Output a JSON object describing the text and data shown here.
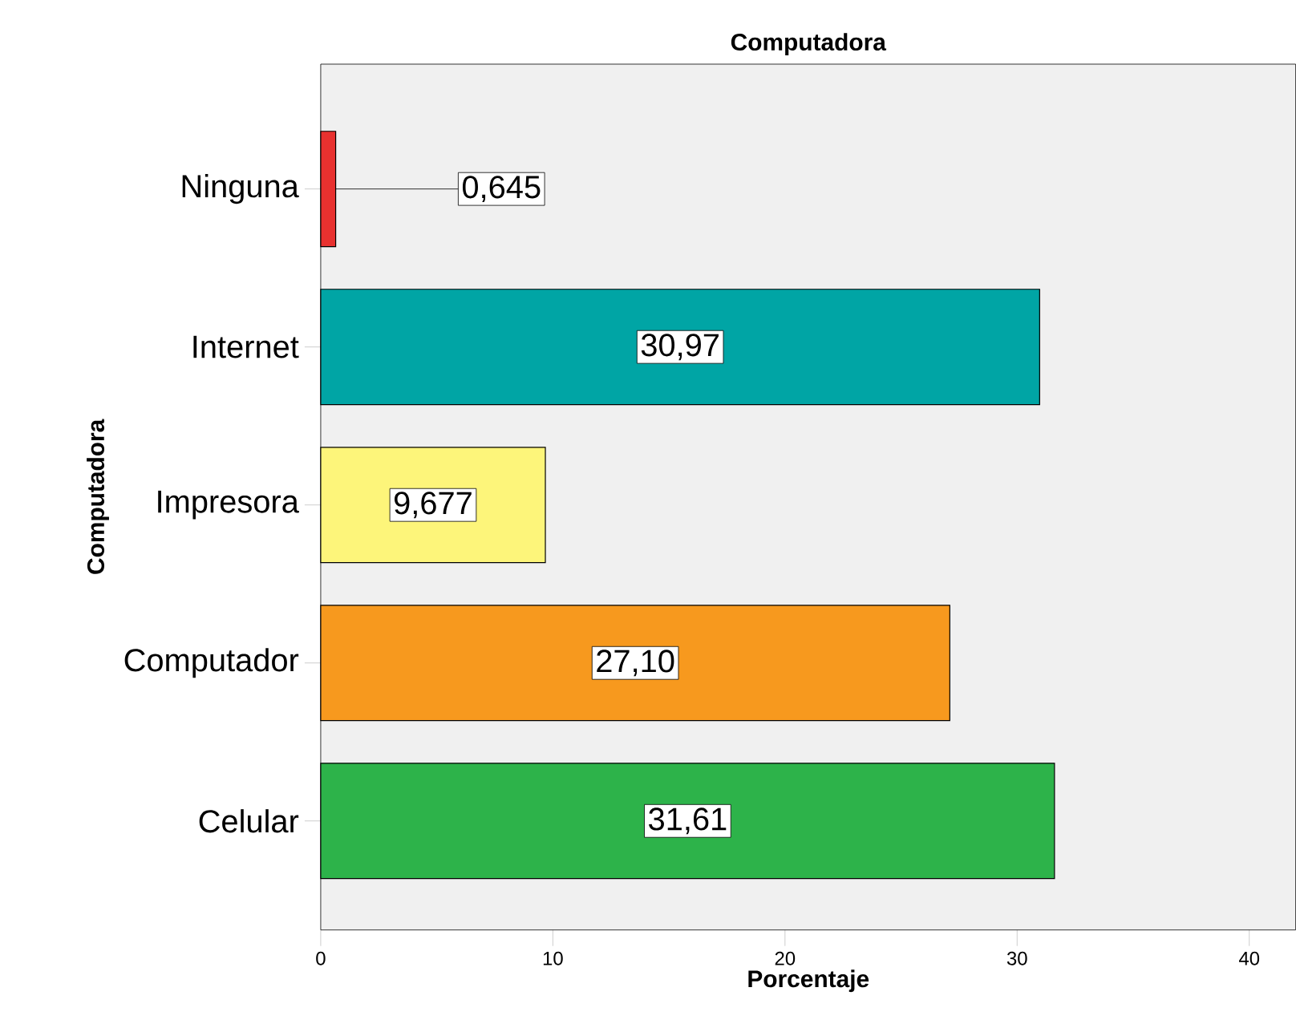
{
  "chart_data": {
    "type": "bar",
    "orientation": "horizontal",
    "title": "Computadora",
    "xlabel": "Porcentaje",
    "ylabel": "Computadora",
    "categories": [
      "Ninguna",
      "Internet",
      "Impresora",
      "Computador",
      "Celular"
    ],
    "values": [
      0.645,
      30.97,
      9.677,
      27.1,
      31.61
    ],
    "value_labels": [
      "0,645",
      "30,97",
      "9,677",
      "27,10",
      "31,61"
    ],
    "colors": [
      "#e8312f",
      "#00a5a5",
      "#fdf57a",
      "#f7991e",
      "#2db34a"
    ],
    "xlim": [
      0,
      42
    ],
    "xticks": [
      0,
      10,
      20,
      30,
      40
    ]
  }
}
